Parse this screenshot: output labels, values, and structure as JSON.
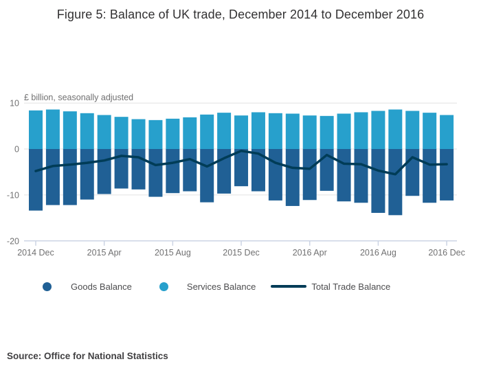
{
  "title": "Figure 5: Balance of UK trade, December 2014 to December 2016",
  "source": "Source: Office for National Statistics",
  "legend": {
    "goods": "Goods Balance",
    "services": "Services Balance",
    "total": "Total Trade Balance"
  },
  "colors": {
    "goods": "#206095",
    "services": "#27a0cc",
    "total_line": "#003c57",
    "gridline": "#e2e2e2",
    "axis": "#ccd4e4",
    "tick_text": "#707071",
    "title_text": "#323132",
    "legend_text": "#4c4c4e",
    "source_text": "#414042"
  },
  "chart_data": {
    "type": "bar",
    "subtype": "bars-with-line-overlay",
    "title": "Figure 5: Balance of UK trade, December 2014 to December 2016",
    "unit_label": "£ billion, seasonally adjusted",
    "xlabel": "",
    "ylabel": "£ billion, seasonally adjusted",
    "ylim": [
      -20,
      10
    ],
    "y_ticks": [
      10,
      0,
      -10,
      -20
    ],
    "grid": "horizontal",
    "legend_position": "bottom",
    "categories": [
      "2014 Dec",
      "2015 Jan",
      "2015 Feb",
      "2015 Mar",
      "2015 Apr",
      "2015 May",
      "2015 Jun",
      "2015 Jul",
      "2015 Aug",
      "2015 Sep",
      "2015 Oct",
      "2015 Nov",
      "2015 Dec",
      "2016 Jan",
      "2016 Feb",
      "2016 Mar",
      "2016 Apr",
      "2016 May",
      "2016 Jun",
      "2016 Jul",
      "2016 Aug",
      "2016 Sep",
      "2016 Oct",
      "2016 Nov",
      "2016 Dec"
    ],
    "x_tick_labels": [
      "2014 Dec",
      "2015 Apr",
      "2015 Aug",
      "2015 Dec",
      "2016 Apr",
      "2016 Aug",
      "2016 Dec"
    ],
    "x_tick_indices": [
      0,
      4,
      8,
      12,
      16,
      20,
      24
    ],
    "series": [
      {
        "name": "Goods Balance",
        "type": "bar",
        "color": "#206095",
        "values": [
          -13.4,
          -12.2,
          -12.2,
          -11.0,
          -9.8,
          -8.6,
          -8.8,
          -10.4,
          -9.6,
          -9.2,
          -11.6,
          -9.7,
          -8.1,
          -9.2,
          -11.2,
          -12.4,
          -11.1,
          -9.1,
          -11.4,
          -11.7,
          -13.9,
          -14.4,
          -10.2,
          -11.7,
          -11.2
        ]
      },
      {
        "name": "Services Balance",
        "type": "bar",
        "color": "#27a0cc",
        "values": [
          8.4,
          8.6,
          8.2,
          7.8,
          7.4,
          7.0,
          6.5,
          6.3,
          6.6,
          6.9,
          7.5,
          7.9,
          7.3,
          8.0,
          7.8,
          7.7,
          7.3,
          7.2,
          7.7,
          8.0,
          8.3,
          8.6,
          8.3,
          7.9,
          7.4
        ]
      },
      {
        "name": "Total Trade Balance",
        "type": "line",
        "color": "#003c57",
        "values": [
          -4.8,
          -3.7,
          -3.4,
          -3.0,
          -2.5,
          -1.5,
          -1.8,
          -3.5,
          -3.0,
          -2.2,
          -3.8,
          -2.0,
          -0.4,
          -1.0,
          -3.0,
          -4.1,
          -4.3,
          -1.3,
          -3.2,
          -3.3,
          -4.7,
          -5.5,
          -1.8,
          -3.4,
          -3.3
        ]
      }
    ]
  }
}
